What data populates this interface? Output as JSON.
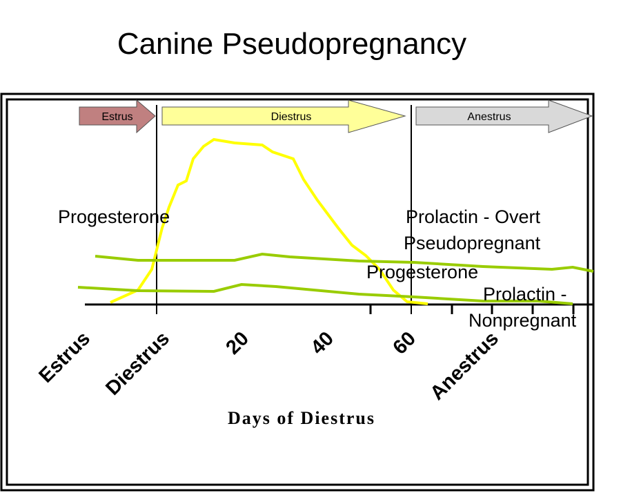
{
  "title": "Canine Pseudopregnancy",
  "phases": [
    "Estrus",
    "Diestrus",
    "Anestrus"
  ],
  "curve_labels": [
    {
      "lines": [
        "Progesterone"
      ]
    },
    {
      "lines": [
        "Prolactin - Overt",
        "Pseudopregnant"
      ]
    },
    {
      "lines": [
        "Progesterone"
      ]
    },
    {
      "lines": [
        "Prolactin -",
        "Nonpregnant"
      ]
    }
  ],
  "x_axis": {
    "labels": [
      "Estrus",
      "Diestrus",
      "20",
      "40",
      "60",
      "Anestrus"
    ],
    "title": "Days of Diestrus"
  }
}
